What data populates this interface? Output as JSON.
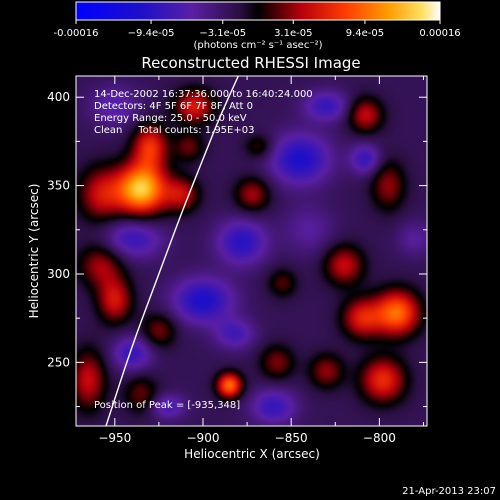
{
  "chart_data": {
    "type": "heatmap",
    "title": "Reconstructed RHESSI Image",
    "xlabel": "Heliocentric X (arcsec)",
    "ylabel": "Heliocentric Y (arcsec)",
    "xlim": [
      -972,
      -773
    ],
    "ylim": [
      214,
      412
    ],
    "x_ticks": [
      -950,
      -900,
      -850,
      -800
    ],
    "y_ticks": [
      250,
      300,
      350,
      400
    ],
    "colorbar": {
      "min": -0.00016,
      "max": 0.00016,
      "tick_values": [
        -0.00016,
        -9.4e-05,
        -3.1e-05,
        3.1e-05,
        9.4e-05,
        0.00016
      ],
      "tick_labels": [
        "-0.00016",
        "−9.4e-05",
        "−3.1e-05",
        "3.1e-05",
        "9.4e-05",
        "0.00016"
      ],
      "unit_label": "(photons cm⁻² s⁻¹ asec⁻²)"
    },
    "annotations": [
      "14-Dec-2002 16:37:36.000 to 16:40:24.000",
      "Detectors: 4F 5F 6F 7F 8F, Att 0",
      "Energy Range: 25.0 - 50.0 keV",
      "Clean     Total counts: 1.95E+03",
      "Position of Peak = [-935,348]"
    ],
    "timestamp": "21-Apr-2013 23:07",
    "peak": {
      "x": -935,
      "y": 348,
      "value": 0.00016
    },
    "limb_curve": [
      [
        -955,
        214
      ],
      [
        -940,
        260
      ],
      [
        -925,
        300
      ],
      [
        -912,
        335
      ],
      [
        -900,
        365
      ],
      [
        -890,
        390
      ],
      [
        -880,
        412
      ]
    ],
    "blobs": [
      {
        "x": -935,
        "y": 348,
        "sx": 10,
        "sy": 10,
        "value": 0.00016
      },
      {
        "x": -930,
        "y": 372,
        "sx": 7,
        "sy": 9,
        "value": 9e-05
      },
      {
        "x": -958,
        "y": 345,
        "sx": 9,
        "sy": 11,
        "value": 7e-05
      },
      {
        "x": -912,
        "y": 345,
        "sx": 7,
        "sy": 7,
        "value": 6.5e-05
      },
      {
        "x": -905,
        "y": 395,
        "sx": 8,
        "sy": 7,
        "value": 8e-05
      },
      {
        "x": -908,
        "y": 372,
        "sx": 6,
        "sy": 6,
        "value": 4.5e-05
      },
      {
        "x": -958,
        "y": 305,
        "sx": 9,
        "sy": 9,
        "value": 6e-05
      },
      {
        "x": -950,
        "y": 285,
        "sx": 7,
        "sy": 9,
        "value": 7.5e-05
      },
      {
        "x": -925,
        "y": 268,
        "sx": 7,
        "sy": 7,
        "value": 5e-05
      },
      {
        "x": -965,
        "y": 240,
        "sx": 7,
        "sy": 12,
        "value": 7e-05
      },
      {
        "x": -935,
        "y": 232,
        "sx": 7,
        "sy": 8,
        "value": 4.5e-05
      },
      {
        "x": -885,
        "y": 237,
        "sx": 5,
        "sy": 5,
        "value": 0.00012
      },
      {
        "x": -858,
        "y": 250,
        "sx": 7,
        "sy": 7,
        "value": 5e-05
      },
      {
        "x": -872,
        "y": 345,
        "sx": 7,
        "sy": 7,
        "value": 6e-05
      },
      {
        "x": -868,
        "y": 372,
        "sx": 6,
        "sy": 5,
        "value": 4e-05
      },
      {
        "x": -808,
        "y": 390,
        "sx": 7,
        "sy": 7,
        "value": 7e-05
      },
      {
        "x": -795,
        "y": 350,
        "sx": 7,
        "sy": 10,
        "value": 5.5e-05
      },
      {
        "x": -790,
        "y": 278,
        "sx": 9,
        "sy": 9,
        "value": 0.00012
      },
      {
        "x": -810,
        "y": 275,
        "sx": 8,
        "sy": 8,
        "value": 8e-05
      },
      {
        "x": -820,
        "y": 305,
        "sx": 8,
        "sy": 8,
        "value": 7e-05
      },
      {
        "x": -798,
        "y": 240,
        "sx": 9,
        "sy": 9,
        "value": 9e-05
      },
      {
        "x": -830,
        "y": 245,
        "sx": 7,
        "sy": 7,
        "value": 5.5e-05
      },
      {
        "x": -855,
        "y": 295,
        "sx": 6,
        "sy": 6,
        "value": 4e-05
      },
      {
        "x": -940,
        "y": 320,
        "sx": 12,
        "sy": 8,
        "value": -6e-05
      },
      {
        "x": -900,
        "y": 285,
        "sx": 12,
        "sy": 9,
        "value": -8e-05
      },
      {
        "x": -878,
        "y": 318,
        "sx": 10,
        "sy": 9,
        "value": -7e-05
      },
      {
        "x": -845,
        "y": 365,
        "sx": 12,
        "sy": 10,
        "value": -8e-05
      },
      {
        "x": -830,
        "y": 395,
        "sx": 9,
        "sy": 6,
        "value": -6e-05
      },
      {
        "x": -808,
        "y": 365,
        "sx": 6,
        "sy": 6,
        "value": -6e-05
      },
      {
        "x": -860,
        "y": 225,
        "sx": 9,
        "sy": 7,
        "value": -6e-05
      },
      {
        "x": -940,
        "y": 255,
        "sx": 8,
        "sy": 7,
        "value": -6e-05
      },
      {
        "x": -882,
        "y": 266,
        "sx": 8,
        "sy": 6,
        "value": -5e-05
      },
      {
        "x": -920,
        "y": 225,
        "sx": 7,
        "sy": 5,
        "value": -5e-05
      },
      {
        "x": -950,
        "y": 395,
        "sx": 10,
        "sy": 8,
        "value": -4e-05
      },
      {
        "x": -840,
        "y": 325,
        "sx": 10,
        "sy": 10,
        "value": -3e-05
      },
      {
        "x": -780,
        "y": 320,
        "sx": 7,
        "sy": 7,
        "value": -3e-05
      }
    ]
  }
}
